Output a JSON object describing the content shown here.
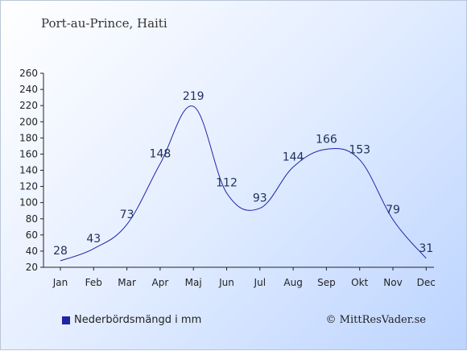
{
  "credit": "© MittResVader.se",
  "chart_data": {
    "type": "line",
    "title": "Port-au-Prince, Haiti",
    "categories": [
      "Jan",
      "Feb",
      "Mar",
      "Apr",
      "Maj",
      "Jun",
      "Jul",
      "Aug",
      "Sep",
      "Okt",
      "Nov",
      "Dec"
    ],
    "series": [
      {
        "name": "Nederbördsmängd i mm",
        "values": [
          28,
          43,
          73,
          148,
          219,
          112,
          93,
          144,
          166,
          153,
          79,
          31
        ]
      }
    ],
    "ylim": [
      20,
      260
    ],
    "yticks": [
      20,
      40,
      60,
      80,
      100,
      120,
      140,
      160,
      180,
      200,
      220,
      240,
      260
    ],
    "grid": false,
    "legend": "bottom-left",
    "colors": {
      "line": "#1e24a8"
    }
  }
}
